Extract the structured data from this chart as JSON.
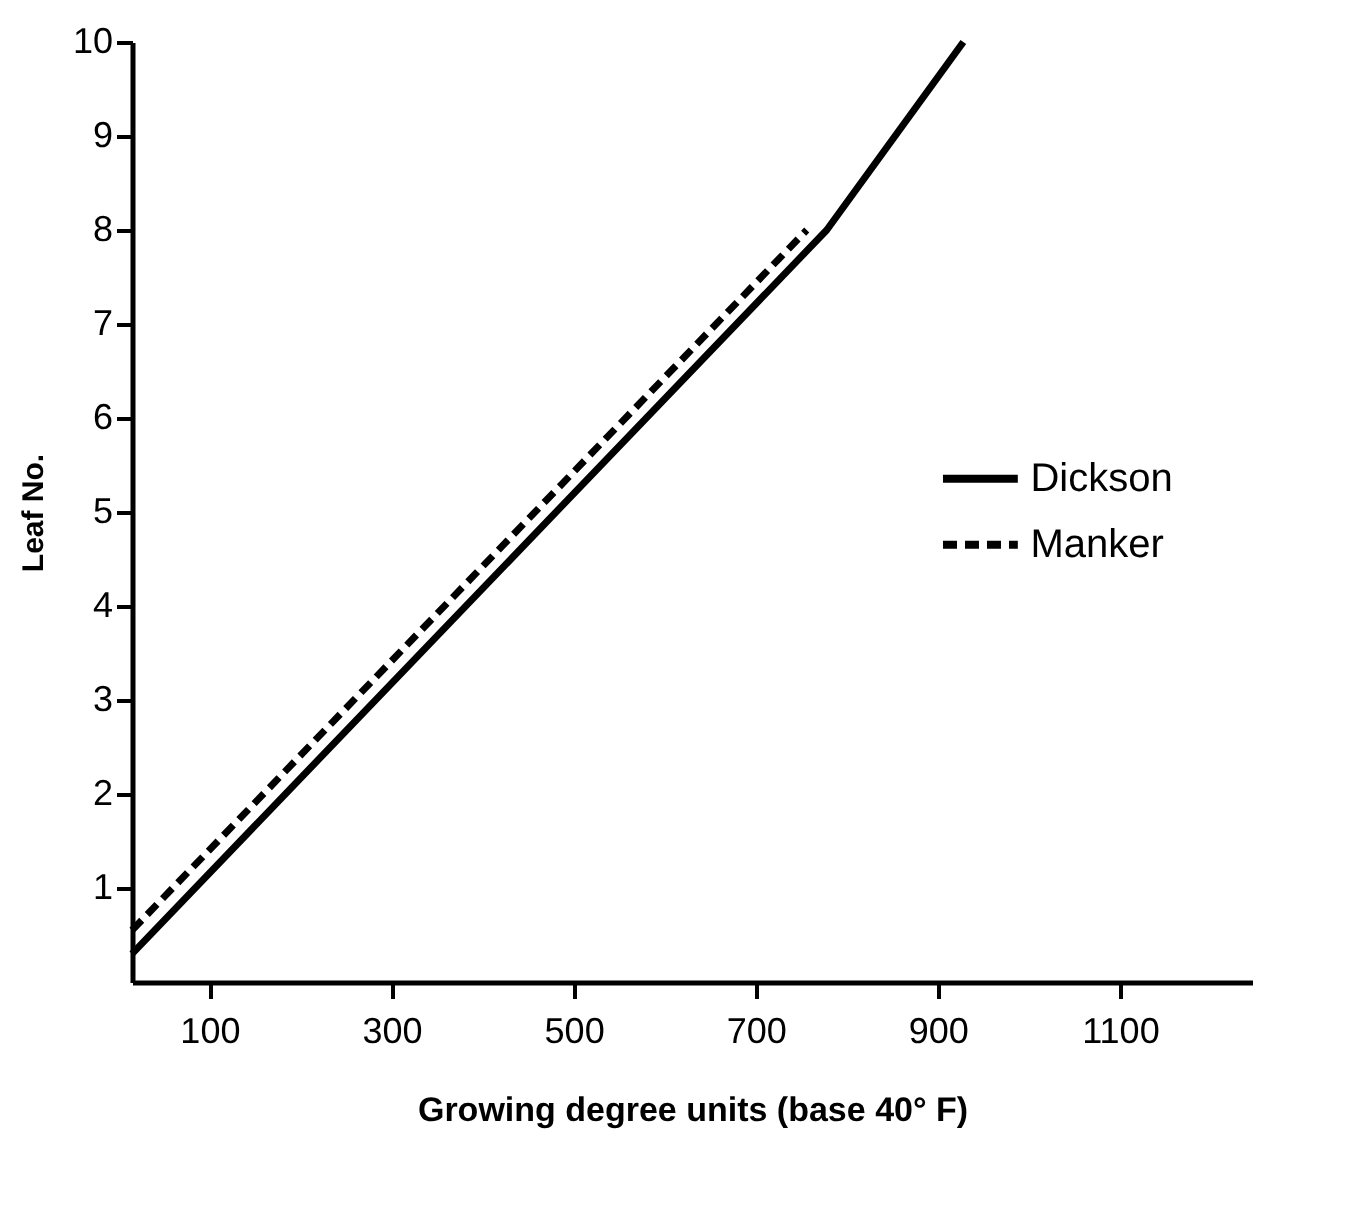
{
  "chart_data": {
    "type": "line",
    "xlabel": "Growing degree units (base 40° F)",
    "ylabel": "Leaf No.",
    "xlim": [
      15,
      1245
    ],
    "ylim": [
      0,
      10
    ],
    "xticks": [
      100,
      300,
      500,
      700,
      900,
      1100
    ],
    "yticks": [
      1,
      2,
      3,
      4,
      5,
      6,
      7,
      8,
      9,
      10
    ],
    "grid": false,
    "legend": "right",
    "marker": "none",
    "series": [
      {
        "name": "Dickson",
        "color": "#000000",
        "line_style": "solid",
        "x": [
          15,
          778,
          928
        ],
        "values": [
          0.3,
          8,
          10
        ]
      },
      {
        "name": "Manker",
        "color": "#000000",
        "line_style": "dashed",
        "x": [
          15,
          756
        ],
        "values": [
          0.55,
          8
        ]
      }
    ]
  }
}
